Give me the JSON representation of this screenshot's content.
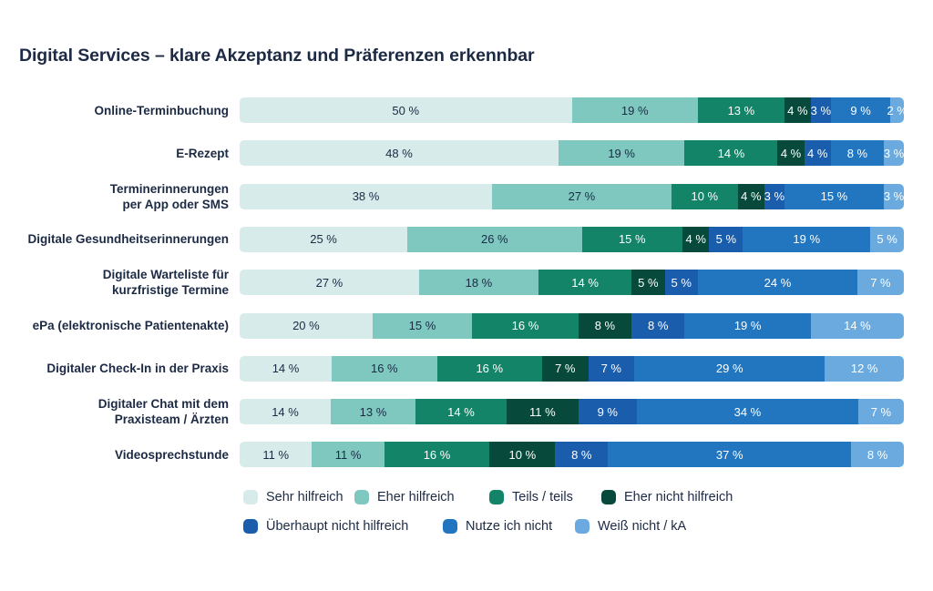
{
  "chart_data": {
    "type": "bar",
    "orientation": "horizontal-stacked-100",
    "title": "Digital Services – klare Akzeptanz und Präferenzen erkennbar",
    "xlabel": "",
    "ylabel": "",
    "xlim": [
      0,
      100
    ],
    "grid": false,
    "legend_position": "bottom",
    "categories": [
      "Online-Terminbuchung",
      "E-Rezept",
      "Terminerinnerungen per App oder SMS",
      "Digitale Gesundheitserinnerungen",
      "Digitale Warteliste für kurzfristige Termine",
      "ePa (elektronische Patientenakte)",
      "Digitaler Check-In in der Praxis",
      "Digitaler Chat mit dem Praxisteam / Ärzten",
      "Videosprechstunde"
    ],
    "category_lines": [
      [
        "Online-Terminbuchung"
      ],
      [
        "E-Rezept"
      ],
      [
        "Terminerinnerungen",
        "per App oder SMS"
      ],
      [
        "Digitale Gesundheitserinnerungen"
      ],
      [
        "Digitale Warteliste für",
        "kurzfristige Termine"
      ],
      [
        "ePa (elektronische Patientenakte)"
      ],
      [
        "Digitaler Check-In in der Praxis"
      ],
      [
        "Digitaler Chat mit dem",
        "Praxisteam / Ärzten"
      ],
      [
        "Videosprechstunde"
      ]
    ],
    "series": [
      {
        "name": "Sehr hilfreich",
        "color": "#d7ebea",
        "label_color": "#1c2a44",
        "values": [
          50,
          48,
          38,
          25,
          27,
          20,
          14,
          14,
          11
        ]
      },
      {
        "name": "Eher hilfreich",
        "color": "#7fc8c0",
        "label_color": "#1c2a44",
        "values": [
          19,
          19,
          27,
          26,
          18,
          15,
          16,
          13,
          11
        ]
      },
      {
        "name": "Teils / teils",
        "color": "#138468",
        "label_color": "#ffffff",
        "values": [
          13,
          14,
          10,
          15,
          14,
          16,
          16,
          14,
          16
        ]
      },
      {
        "name": "Eher nicht hilfreich",
        "color": "#074a3b",
        "label_color": "#ffffff",
        "values": [
          4,
          4,
          4,
          4,
          5,
          8,
          7,
          11,
          10
        ]
      },
      {
        "name": "Überhaupt nicht hilfreich",
        "color": "#1a5dad",
        "label_color": "#ffffff",
        "values": [
          3,
          4,
          3,
          5,
          5,
          8,
          7,
          9,
          8
        ]
      },
      {
        "name": "Nutze ich nicht",
        "color": "#2176bf",
        "label_color": "#ffffff",
        "values": [
          9,
          8,
          15,
          19,
          24,
          19,
          29,
          34,
          37
        ]
      },
      {
        "name": "Weiß nicht / kA",
        "color": "#6aaade",
        "label_color": "#ffffff",
        "values": [
          2,
          3,
          3,
          5,
          7,
          14,
          12,
          7,
          8
        ]
      }
    ],
    "value_suffix": " %"
  }
}
